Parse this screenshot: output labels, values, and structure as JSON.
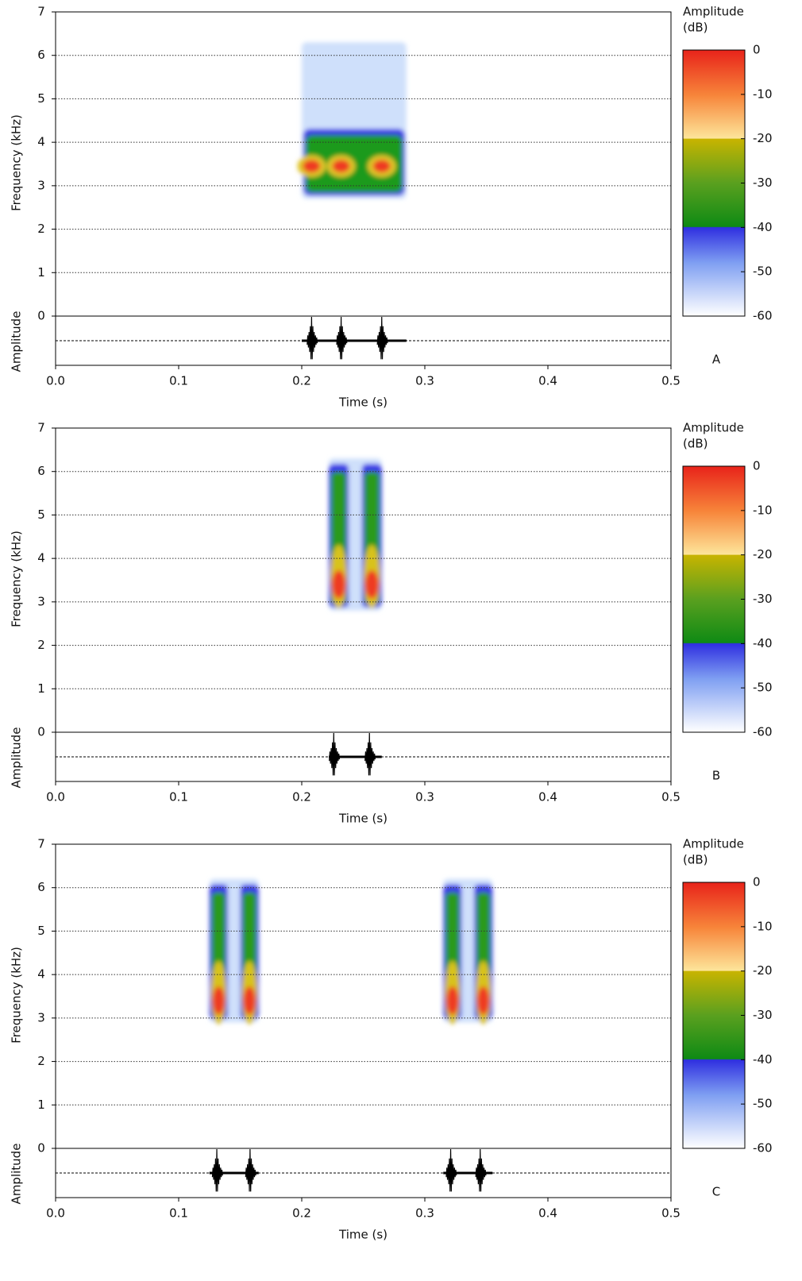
{
  "chart_data": [
    {
      "type": "spectrogram",
      "panel": "A",
      "xlabel": "Time (s)",
      "ylabel": "Frequency (kHz)",
      "amplitude_label": "Amplitude",
      "colorbar_label": [
        "Amplitude",
        "(dB)"
      ],
      "xlim": [
        0,
        0.5
      ],
      "xticks": [
        {
          "value": 0,
          "label": "0.0"
        },
        0.1,
        0.2,
        0.3,
        0.4,
        0.5
      ],
      "ylim": [
        0,
        7
      ],
      "yticks": [
        0,
        1,
        2,
        3,
        4,
        5,
        6,
        7
      ],
      "grid": true,
      "clim": [
        -60,
        0
      ],
      "cticks": [
        0,
        -10,
        -20,
        -30,
        -40,
        -50,
        -60
      ],
      "calls": [
        {
          "time": [
            0.2,
            0.285
          ],
          "freq": [
            2.7,
            6.3
          ],
          "core_top": 4.2,
          "peaks": [
            0.208,
            0.232,
            0.265
          ],
          "peak_freq": 3.45
        }
      ]
    },
    {
      "type": "spectrogram",
      "panel": "B",
      "xlabel": "Time (s)",
      "ylabel": "Frequency (kHz)",
      "amplitude_label": "Amplitude",
      "colorbar_label": [
        "Amplitude",
        "(dB)"
      ],
      "xlim": [
        0,
        0.5
      ],
      "xticks": [
        {
          "value": 0,
          "label": "0.0"
        },
        0.1,
        0.2,
        0.3,
        0.4,
        0.5
      ],
      "ylim": [
        0,
        7
      ],
      "yticks": [
        0,
        1,
        2,
        3,
        4,
        5,
        6,
        7
      ],
      "grid": true,
      "clim": [
        -60,
        0
      ],
      "cticks": [
        0,
        -10,
        -20,
        -30,
        -40,
        -50,
        -60
      ],
      "calls": [
        {
          "time": [
            0.222,
            0.265
          ],
          "freq": [
            2.8,
            6.3
          ],
          "core_top": 6.1,
          "peaks": [
            0.226,
            0.255
          ],
          "peak_freq": 3.4
        }
      ]
    },
    {
      "type": "spectrogram",
      "panel": "C",
      "xlabel": "Time (s)",
      "ylabel": "Frequency (kHz)",
      "amplitude_label": "Amplitude",
      "colorbar_label": [
        "Amplitude",
        "(dB)"
      ],
      "xlim": [
        0,
        0.5
      ],
      "xticks": [
        {
          "value": 0,
          "label": "0.0"
        },
        0.1,
        0.2,
        0.3,
        0.4,
        0.5
      ],
      "ylim": [
        0,
        7
      ],
      "yticks": [
        0,
        1,
        2,
        3,
        4,
        5,
        6,
        7
      ],
      "grid": true,
      "clim": [
        -60,
        0
      ],
      "cticks": [
        0,
        -10,
        -20,
        -30,
        -40,
        -50,
        -60
      ],
      "calls": [
        {
          "time": [
            0.125,
            0.165
          ],
          "freq": [
            2.9,
            6.2
          ],
          "core_top": 6.0,
          "peaks": [
            0.131,
            0.158
          ],
          "peak_freq": 3.4
        },
        {
          "time": [
            0.315,
            0.355
          ],
          "freq": [
            2.9,
            6.2
          ],
          "core_top": 6.0,
          "peaks": [
            0.321,
            0.345
          ],
          "peak_freq": 3.4
        }
      ]
    }
  ]
}
